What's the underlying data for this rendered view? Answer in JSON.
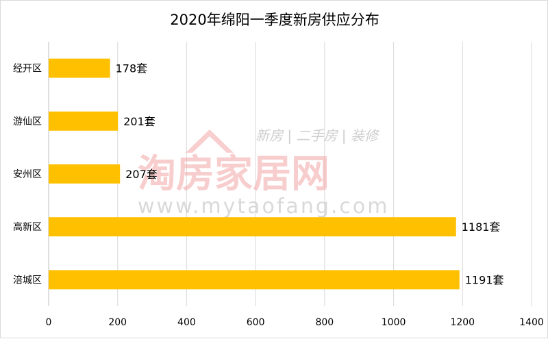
{
  "chart_data": {
    "type": "bar",
    "orientation": "horizontal",
    "title": "2020年绵阳一季度新房供应分布",
    "categories": [
      "经开区",
      "游仙区",
      "安州区",
      "高新区",
      "涪城区"
    ],
    "values": [
      178,
      201,
      207,
      1181,
      1191
    ],
    "data_labels": [
      "178套",
      "201套",
      "207套",
      "1181套",
      "1191套"
    ],
    "xlim": [
      0,
      1400
    ],
    "x_ticks": [
      0,
      200,
      400,
      600,
      800,
      1000,
      1200,
      1400
    ],
    "grid": true,
    "legend": "none",
    "bar_color": "#FFC000",
    "grid_color": "#d9d9d9"
  },
  "watermark": {
    "brand": "淘房家居网",
    "tagline": "新房 | 二手房 | 装修",
    "url": "www.mytaofang.com",
    "color": "#f2a5a5"
  }
}
